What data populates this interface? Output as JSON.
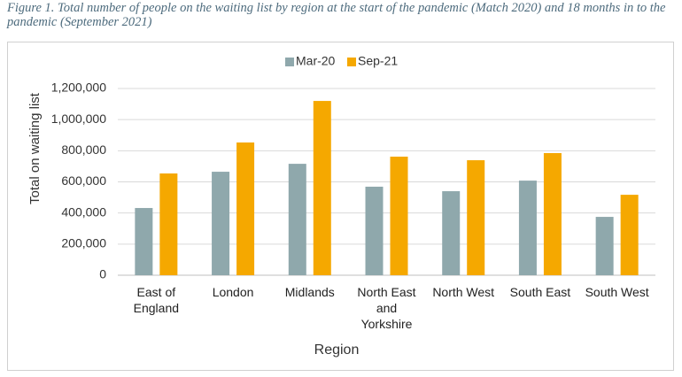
{
  "chart_data": {
    "type": "bar",
    "title": "Figure 1. Total number of people on the waiting list by region at the start of the pandemic (Match 2020) and 18 months in to the pandemic (September 2021)",
    "x_label": "Region",
    "y_label": "Total on waiting list",
    "categories": [
      "East of England",
      "London",
      "Midlands",
      "North East and Yorkshire",
      "North West",
      "South East",
      "South West"
    ],
    "series": [
      {
        "name": "Mar-20",
        "color": "#8fa8ac",
        "values": [
          432000,
          665000,
          716000,
          569000,
          540000,
          608000,
          375000
        ]
      },
      {
        "name": "Sep-21",
        "color": "#f5a800",
        "values": [
          654000,
          853000,
          1120000,
          762000,
          739000,
          785000,
          517000
        ]
      }
    ],
    "ylim": [
      0,
      1200000
    ],
    "yticks": [
      0,
      {
        "value": 200000,
        "label": "200,000"
      },
      {
        "value": 400000,
        "label": "400,000"
      },
      {
        "value": 600000,
        "label": "600,000"
      },
      {
        "value": 800000,
        "label": "800,000"
      },
      {
        "value": 1000000,
        "label": "1,000,000"
      },
      {
        "value": 1200000,
        "label": "1,200,000"
      }
    ],
    "grid": true,
    "legend": "top"
  }
}
